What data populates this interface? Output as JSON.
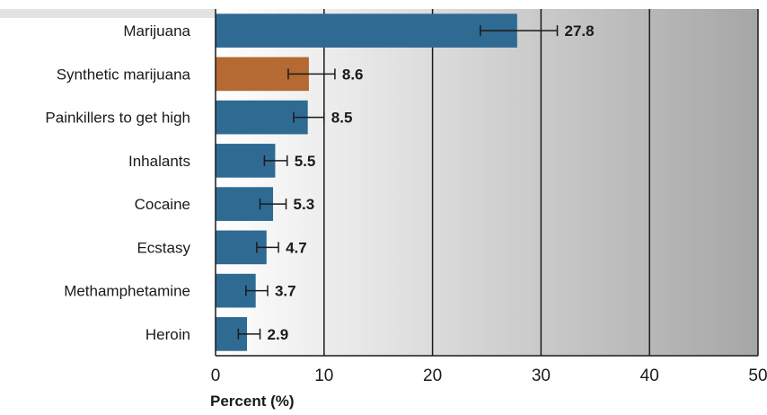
{
  "chart_data": {
    "type": "bar",
    "orientation": "horizontal",
    "categories": [
      "Marijuana",
      "Synthetic marijuana",
      "Painkillers to get high",
      "Inhalants",
      "Cocaine",
      "Ecstasy",
      "Methamphetamine",
      "Heroin"
    ],
    "values": [
      27.8,
      8.6,
      8.5,
      5.5,
      5.3,
      4.7,
      3.7,
      2.9
    ],
    "value_labels": [
      "27.8",
      "8.6",
      "8.5",
      "5.5",
      "5.3",
      "4.7",
      "3.7",
      "2.9"
    ],
    "error_low": [
      24.4,
      6.7,
      7.2,
      4.5,
      4.1,
      3.8,
      2.8,
      2.1
    ],
    "error_high": [
      31.5,
      11.0,
      10.0,
      6.6,
      6.5,
      5.8,
      4.8,
      4.1
    ],
    "bar_colors": [
      "#2f6a93",
      "#b46a32",
      "#2f6a93",
      "#2f6a93",
      "#2f6a93",
      "#2f6a93",
      "#2f6a93",
      "#2f6a93"
    ],
    "xlim": [
      0,
      50
    ],
    "xticks": [
      0,
      10,
      20,
      30,
      40,
      50
    ],
    "xlabel": "Percent (%)",
    "grid": "vertical lines",
    "background": "gradient white to gray"
  }
}
